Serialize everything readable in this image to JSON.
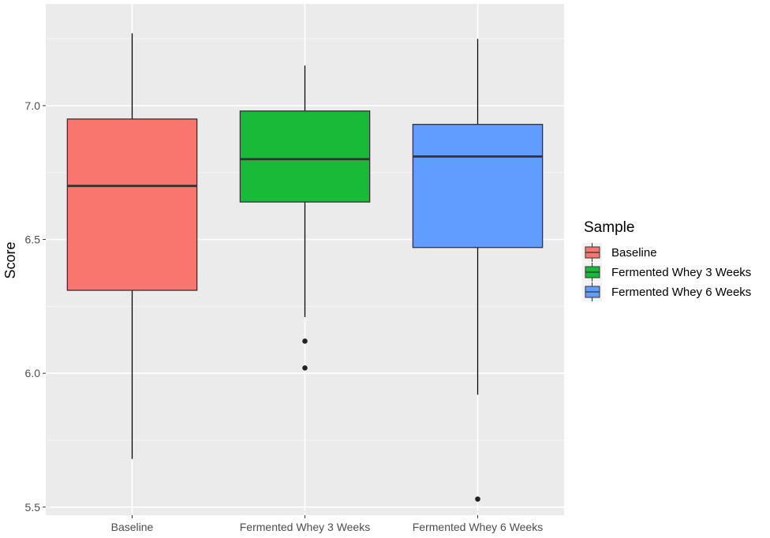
{
  "chart_data": {
    "type": "boxplot",
    "ylabel": "Score",
    "xlabel": "",
    "ylim": [
      5.47,
      7.38
    ],
    "y_ticks": [
      5.5,
      6.0,
      6.5,
      7.0
    ],
    "y_tick_labels": [
      "5.5",
      "6.0",
      "6.5",
      "7.0"
    ],
    "grid": true,
    "categories": [
      "Baseline",
      "Fermented Whey 3 Weeks",
      "Fermented Whey 6 Weeks"
    ],
    "series": [
      {
        "name": "Baseline",
        "color": "#F8766D",
        "whisker_low": 5.68,
        "q1": 6.31,
        "median": 6.7,
        "q3": 6.95,
        "whisker_high": 7.27,
        "outliers": []
      },
      {
        "name": "Fermented Whey 3 Weeks",
        "color": "#19BA38",
        "whisker_low": 6.21,
        "q1": 6.64,
        "median": 6.8,
        "q3": 6.98,
        "whisker_high": 7.15,
        "outliers": [
          6.12,
          6.02
        ]
      },
      {
        "name": "Fermented Whey 6 Weeks",
        "color": "#619CFF",
        "whisker_low": 5.92,
        "q1": 6.47,
        "median": 6.81,
        "q3": 6.93,
        "whisker_high": 7.25,
        "outliers": [
          5.53
        ]
      }
    ],
    "legend": {
      "title": "Sample",
      "position": "right",
      "entries": [
        "Baseline",
        "Fermented Whey 3 Weeks",
        "Fermented Whey 6 Weeks"
      ]
    }
  }
}
